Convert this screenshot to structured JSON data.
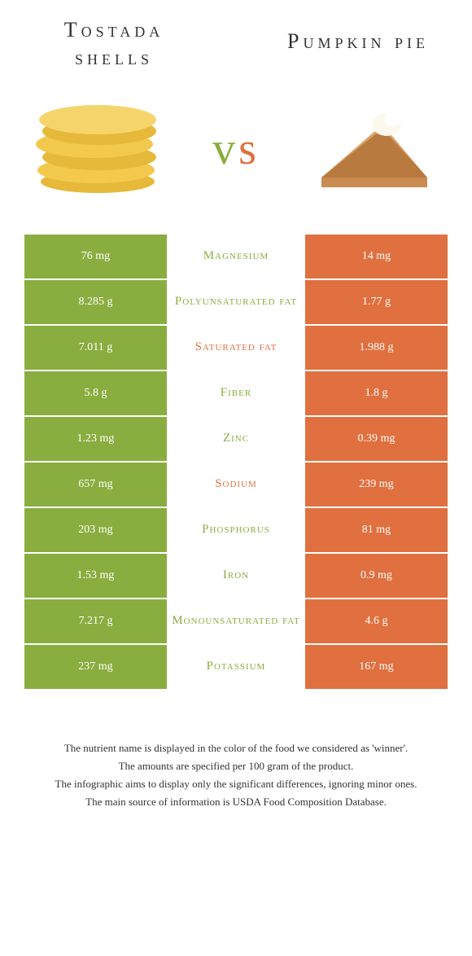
{
  "header": {
    "left_title_line1": "Tostada",
    "left_title_line2": "shells",
    "right_title": "Pumpkin pie"
  },
  "vs": {
    "v": "v",
    "s": "s"
  },
  "colors": {
    "left": "#8aad3f",
    "right": "#e0703f",
    "bg": "#ffffff",
    "text": "#333333"
  },
  "rows": [
    {
      "left": "76 mg",
      "label": "Magnesium",
      "right": "14 mg",
      "winner": "left"
    },
    {
      "left": "8.285 g",
      "label": "Polyunsaturated fat",
      "right": "1.77 g",
      "winner": "left"
    },
    {
      "left": "7.011 g",
      "label": "Saturated fat",
      "right": "1.988 g",
      "winner": "right"
    },
    {
      "left": "5.8 g",
      "label": "Fiber",
      "right": "1.8 g",
      "winner": "left"
    },
    {
      "left": "1.23 mg",
      "label": "Zinc",
      "right": "0.39 mg",
      "winner": "left"
    },
    {
      "left": "657 mg",
      "label": "Sodium",
      "right": "239 mg",
      "winner": "right"
    },
    {
      "left": "203 mg",
      "label": "Phosphorus",
      "right": "81 mg",
      "winner": "left"
    },
    {
      "left": "1.53 mg",
      "label": "Iron",
      "right": "0.9 mg",
      "winner": "left"
    },
    {
      "left": "7.217 g",
      "label": "Monounsaturated fat",
      "right": "4.6 g",
      "winner": "left"
    },
    {
      "left": "237 mg",
      "label": "Potassium",
      "right": "167 mg",
      "winner": "left"
    }
  ],
  "footer": {
    "line1": "The nutrient name is displayed in the color of the food we considered as 'winner'.",
    "line2": "The amounts are specified per 100 gram of the product.",
    "line3": "The infographic aims to display only the significant differences, ignoring minor ones.",
    "line4": "The main source of information is USDA Food Composition Database."
  }
}
